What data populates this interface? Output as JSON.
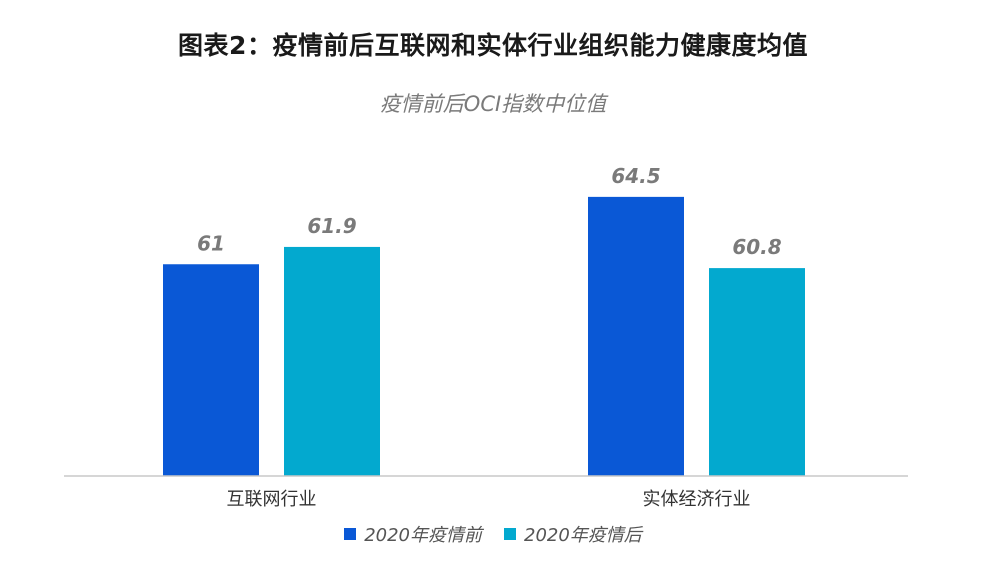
{
  "title": "图表2：疫情前后互联网和实体行业组织能力健康度均值",
  "subtitle": "疫情前后OCI指数中位值",
  "chart_data": {
    "type": "bar",
    "categories": [
      "互联网行业",
      "实体经济行业"
    ],
    "series": [
      {
        "name": "2020年疫情前",
        "values": [
          61,
          64.5
        ],
        "color": "#0a58d6"
      },
      {
        "name": "2020年疫情后",
        "values": [
          61.9,
          60.8
        ],
        "color": "#03a9cf"
      }
    ],
    "ylim": [
      50,
      66
    ],
    "grid": false,
    "legend_position": "bottom-center"
  }
}
